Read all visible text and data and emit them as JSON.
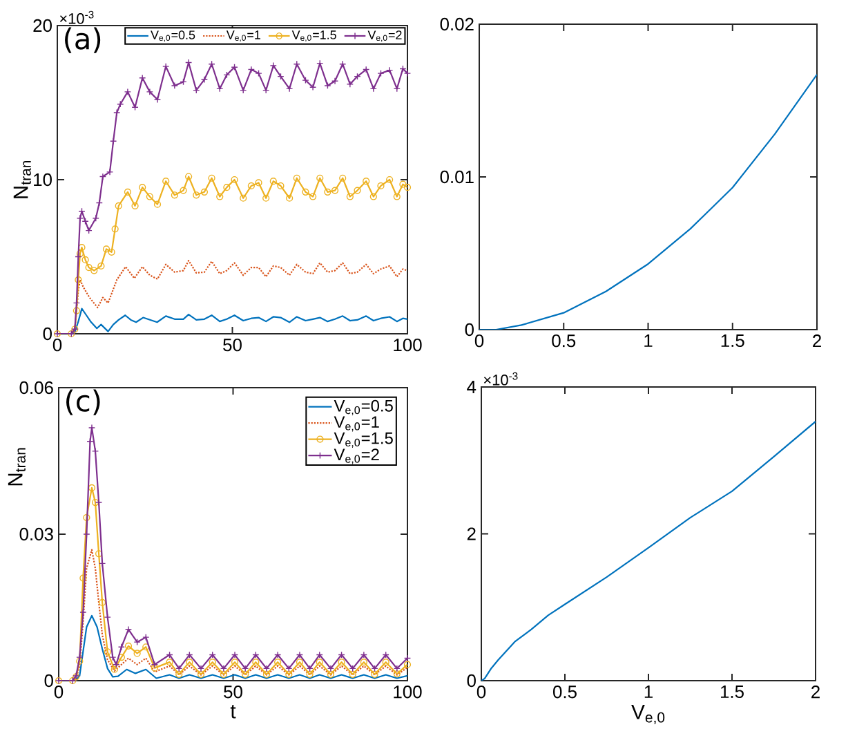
{
  "chart_data": [
    {
      "type": "line",
      "ylabel": "N$_{tran}$",
      "xlim": [
        0,
        100
      ],
      "ylim": [
        0,
        20
      ],
      "xticks": [
        0,
        50,
        100
      ],
      "yticks": [
        0,
        10,
        20
      ],
      "legend": "top",
      "annotations": [
        "(a)",
        "×10$^{-3}$"
      ],
      "series": [
        {
          "name": "V$_{e,0}$=0.5",
          "color": "#0072bd",
          "line_style": "solid",
          "x": [
            0,
            4,
            5,
            6,
            7,
            8,
            9.5,
            11.3,
            12.5,
            14.5,
            16,
            17.5,
            19.4,
            21,
            22.5,
            24.5,
            26.5,
            28.5,
            31,
            33.5,
            36,
            37.5,
            39.7,
            42,
            44.1,
            46.4,
            48.4,
            50.6,
            53.1,
            55.4,
            57.5,
            59.6,
            61.7,
            63.8,
            66.3,
            68.4,
            70.9,
            73,
            75,
            77.2,
            79.3,
            81.5,
            83.6,
            85.7,
            88.2,
            90.3,
            92.4,
            94.9,
            97,
            98.7,
            100
          ],
          "values": [
            0,
            0,
            0.1,
            0.8,
            1.63,
            1.3,
            0.8,
            0.35,
            0.6,
            0.15,
            0.6,
            0.9,
            1.2,
            0.9,
            0.75,
            1.05,
            0.9,
            0.75,
            1.15,
            0.95,
            0.95,
            1.25,
            0.9,
            0.95,
            1.2,
            0.8,
            0.95,
            1.2,
            0.85,
            1.0,
            1.05,
            0.8,
            1.1,
            1.05,
            0.75,
            1.1,
            0.85,
            0.95,
            1.05,
            0.8,
            0.95,
            1.15,
            0.85,
            0.9,
            1.15,
            0.85,
            1.0,
            1.1,
            0.8,
            1.0,
            0.95
          ]
        },
        {
          "name": "V$_{e,0}$=1",
          "color": "#d95319",
          "line_style": "dotted",
          "x": [
            0,
            4,
            5,
            5.5,
            6,
            6.5,
            7.5,
            9.2,
            11.5,
            13,
            14.5,
            17,
            19.5,
            22,
            24.3,
            26.4,
            28.6,
            31,
            33.5,
            36,
            37.5,
            39.7,
            42,
            44.1,
            46.4,
            48.4,
            50.6,
            53.1,
            55.4,
            57.5,
            59.6,
            61.7,
            63.8,
            66.3,
            68.4,
            70.9,
            73,
            75,
            77.2,
            79.3,
            81.5,
            83.6,
            85.7,
            88.2,
            90.3,
            92.4,
            94.9,
            97,
            98.7,
            100
          ],
          "values": [
            0,
            0,
            0.3,
            1.5,
            2.8,
            3.5,
            3.0,
            2.35,
            1.7,
            2.35,
            2.0,
            3.5,
            4.35,
            3.6,
            4.35,
            3.8,
            3.55,
            4.5,
            4.0,
            4.1,
            4.75,
            3.95,
            4.0,
            4.7,
            3.9,
            4.1,
            4.6,
            3.8,
            4.3,
            4.3,
            3.7,
            4.4,
            4.3,
            3.8,
            4.5,
            4.0,
            3.9,
            4.6,
            4.0,
            4.1,
            4.6,
            3.9,
            4.0,
            4.5,
            3.9,
            4.2,
            4.4,
            3.7,
            4.2,
            4.1
          ]
        },
        {
          "name": "V$_{e,0}$=1.5",
          "color": "#edb120",
          "line_style": "solid",
          "marker": "circle",
          "x": [
            0,
            4,
            5,
            5.5,
            6,
            6.5,
            7,
            8,
            9,
            10.5,
            12.5,
            14,
            15.5,
            16.5,
            17.5,
            20.1,
            22.2,
            24.3,
            26.4,
            28.6,
            31,
            33.5,
            36,
            37.5,
            39.7,
            42,
            44.1,
            46.4,
            48.4,
            50.6,
            53.1,
            55.4,
            57.5,
            59.6,
            61.7,
            63.8,
            66.3,
            68.4,
            70.9,
            73,
            75,
            77.2,
            79.3,
            81.5,
            83.6,
            85.7,
            88.2,
            90.3,
            92.4,
            94.9,
            97,
            98.7,
            100
          ],
          "values": [
            0,
            0,
            0.3,
            1.5,
            3.5,
            5.2,
            5.6,
            4.8,
            4.3,
            4.1,
            4.4,
            5.5,
            5.3,
            6.8,
            8.3,
            9.2,
            8.3,
            9.5,
            8.9,
            8.4,
            9.9,
            9.0,
            9.3,
            10.2,
            9.0,
            9.2,
            10.1,
            8.9,
            9.5,
            10.0,
            8.8,
            9.6,
            9.8,
            8.8,
            9.9,
            9.6,
            8.8,
            10.1,
            9.2,
            8.9,
            10.1,
            9.2,
            9.3,
            10.1,
            8.9,
            9.3,
            9.9,
            8.9,
            9.6,
            10.0,
            8.9,
            9.7,
            9.5
          ]
        },
        {
          "name": "V$_{e,0}$=2",
          "color": "#7e2f8e",
          "line_style": "solid",
          "marker": "cross",
          "x": [
            0,
            4,
            5,
            5.5,
            6,
            6.5,
            7,
            8,
            9,
            11,
            12,
            13,
            15,
            16,
            17,
            18,
            20.1,
            22.2,
            24.3,
            26.4,
            28.6,
            31,
            33.5,
            36,
            37.5,
            39.7,
            42,
            44.1,
            46.4,
            48.4,
            50.6,
            53.1,
            55.4,
            57.5,
            59.6,
            61.7,
            63.8,
            66.3,
            68.4,
            70.9,
            73,
            75,
            77.2,
            79.3,
            81.5,
            83.6,
            85.7,
            88.2,
            90.3,
            92.4,
            94.9,
            97,
            98.7,
            100
          ],
          "values": [
            0,
            0,
            0.3,
            2,
            5,
            7.5,
            7.95,
            7.3,
            6.7,
            7.5,
            8.5,
            10.2,
            10.5,
            12.5,
            14.35,
            14.9,
            15.7,
            14.7,
            16.6,
            15.7,
            15.2,
            17.35,
            16.1,
            16.35,
            17.6,
            15.8,
            16.5,
            17.5,
            15.9,
            16.8,
            17.3,
            15.8,
            17.15,
            16.9,
            15.8,
            17.4,
            16.7,
            15.9,
            17.5,
            16.45,
            16.0,
            17.55,
            16.1,
            16.4,
            17.5,
            16.2,
            16.7,
            17.15,
            15.9,
            16.9,
            17.1,
            15.9,
            17.2,
            16.9
          ]
        }
      ]
    },
    {
      "type": "line",
      "xlim": [
        0,
        2
      ],
      "ylim": [
        0,
        0.02
      ],
      "xticks": [
        0,
        0.5,
        1,
        1.5,
        2
      ],
      "yticks": [
        0,
        0.01,
        0.02
      ],
      "series": [
        {
          "color": "#0072bd",
          "line_style": "solid",
          "x": [
            0,
            0.1,
            0.25,
            0.5,
            0.75,
            1,
            1.25,
            1.5,
            1.75,
            2
          ],
          "values": [
            0,
            0,
            0.0003,
            0.0011,
            0.0025,
            0.0043,
            0.0066,
            0.0093,
            0.0128,
            0.0167
          ]
        }
      ]
    },
    {
      "type": "line",
      "xlabel": "t",
      "ylabel": "N$_{tran}$",
      "xlim": [
        0,
        100
      ],
      "ylim": [
        0,
        0.06
      ],
      "xticks": [
        0,
        50,
        100
      ],
      "yticks": [
        0,
        0.03,
        0.06
      ],
      "legend": "top right",
      "annotations": [
        "(c)"
      ],
      "series": [
        {
          "name": "V$_{e,0}$=0.5",
          "color": "#0072bd",
          "line_style": "solid",
          "x": [
            0,
            4,
            5,
            6,
            7,
            8,
            9.5,
            11,
            12.5,
            14,
            15.5,
            17,
            19.5,
            22,
            25,
            28,
            31.8,
            34.5,
            37.5,
            40.8,
            44.1,
            47.3,
            50.5,
            53.5,
            56.5,
            59.6,
            62.8,
            66,
            69.1,
            72,
            74.8,
            78,
            81.1,
            84.3,
            87.5,
            90.6,
            93.8,
            97,
            100
          ],
          "values": [
            0,
            0,
            0.0002,
            0.001,
            0.006,
            0.011,
            0.0133,
            0.011,
            0.0065,
            0.0025,
            0.0008,
            0.0009,
            0.0023,
            0.0015,
            0.0023,
            0.0005,
            0.0012,
            0.0005,
            0.0012,
            0.0005,
            0.0012,
            0.0005,
            0.0012,
            0.0005,
            0.0012,
            0.0005,
            0.0012,
            0.0005,
            0.0012,
            0.0005,
            0.0012,
            0.0005,
            0.0012,
            0.0005,
            0.0012,
            0.0005,
            0.0012,
            0.0005,
            0.001
          ]
        },
        {
          "name": "V$_{e,0}$=1",
          "color": "#d95319",
          "line_style": "dotted",
          "x": [
            0,
            4,
            5,
            6,
            7,
            8,
            9.5,
            10.5,
            11.5,
            12.5,
            14,
            16,
            18,
            20,
            22.5,
            25,
            27.5,
            31.8,
            34.5,
            37.5,
            40.8,
            44.1,
            47.3,
            50.5,
            53.5,
            56.5,
            59.6,
            62.8,
            66,
            69.1,
            72,
            74.8,
            78,
            81.1,
            84.3,
            87.5,
            90.6,
            93.8,
            97,
            100
          ],
          "values": [
            0,
            0,
            0.0005,
            0.003,
            0.012,
            0.023,
            0.0268,
            0.023,
            0.016,
            0.0094,
            0.0043,
            0.002,
            0.0033,
            0.0046,
            0.0033,
            0.0046,
            0.0018,
            0.003,
            0.0012,
            0.003,
            0.0012,
            0.003,
            0.0012,
            0.003,
            0.0012,
            0.003,
            0.0012,
            0.003,
            0.0012,
            0.003,
            0.0012,
            0.003,
            0.0012,
            0.003,
            0.0012,
            0.003,
            0.0012,
            0.003,
            0.0012,
            0.0027
          ]
        },
        {
          "name": "V$_{e,0}$=1.5",
          "color": "#edb120",
          "line_style": "solid",
          "marker": "circle",
          "x": [
            0,
            4,
            5,
            6,
            7,
            8,
            9.5,
            10.5,
            11.5,
            12.5,
            14,
            16,
            18,
            20,
            22.5,
            25,
            27.5,
            31.8,
            34.5,
            37.5,
            40.8,
            44.1,
            47.3,
            50.5,
            53.5,
            56.5,
            59.6,
            62.8,
            66,
            69.1,
            72,
            74.8,
            78,
            81.1,
            84.3,
            87.5,
            90.6,
            93.8,
            97,
            100
          ],
          "values": [
            0,
            0,
            0.0008,
            0.004,
            0.021,
            0.0334,
            0.0395,
            0.0365,
            0.026,
            0.016,
            0.0059,
            0.0023,
            0.0048,
            0.0071,
            0.0056,
            0.0069,
            0.0026,
            0.0038,
            0.0013,
            0.0038,
            0.0013,
            0.0038,
            0.0013,
            0.0038,
            0.0013,
            0.0038,
            0.0013,
            0.0038,
            0.0013,
            0.0038,
            0.0013,
            0.0038,
            0.0013,
            0.0038,
            0.0013,
            0.0038,
            0.0013,
            0.0038,
            0.0014,
            0.0033
          ]
        },
        {
          "name": "V$_{e,0}$=2",
          "color": "#7e2f8e",
          "line_style": "solid",
          "marker": "cross",
          "x": [
            0,
            4,
            5,
            6,
            7,
            8,
            9,
            9.5,
            10.5,
            11.5,
            12.5,
            14,
            15.5,
            16.5,
            18,
            20,
            22.5,
            25,
            27.5,
            31.8,
            34.5,
            37.5,
            40.8,
            44.1,
            47.3,
            50.5,
            53.5,
            56.5,
            59.6,
            62.8,
            66,
            69.1,
            72,
            74.8,
            78,
            81.1,
            84.3,
            87.5,
            90.6,
            93.8,
            97,
            100
          ],
          "values": [
            0,
            0,
            0.001,
            0.0048,
            0.014,
            0.03,
            0.049,
            0.0518,
            0.047,
            0.0365,
            0.024,
            0.013,
            0.0048,
            0.0033,
            0.0069,
            0.0105,
            0.0079,
            0.0089,
            0.0033,
            0.0053,
            0.0025,
            0.0053,
            0.0025,
            0.0053,
            0.0025,
            0.0053,
            0.0025,
            0.0053,
            0.0025,
            0.0053,
            0.0025,
            0.0053,
            0.0025,
            0.0053,
            0.0025,
            0.0053,
            0.0025,
            0.0053,
            0.0025,
            0.0053,
            0.0025,
            0.0046
          ]
        }
      ]
    },
    {
      "type": "line",
      "xlabel": "V$_{e,0}$",
      "xlim": [
        0,
        2
      ],
      "ylim": [
        0,
        4
      ],
      "xticks": [
        0,
        0.5,
        1,
        1.5,
        2
      ],
      "yticks": [
        0,
        2,
        4
      ],
      "annotations": [
        "×10$^{-3}$"
      ],
      "series": [
        {
          "color": "#0072bd",
          "line_style": "solid",
          "x": [
            0,
            0.02,
            0.06,
            0.1,
            0.2,
            0.3,
            0.4,
            0.5,
            0.75,
            1,
            1.25,
            1.5,
            1.75,
            2
          ],
          "values": [
            0,
            0.03,
            0.17,
            0.28,
            0.53,
            0.7,
            0.89,
            1.04,
            1.41,
            1.81,
            2.22,
            2.58,
            3.05,
            3.53
          ]
        }
      ]
    }
  ]
}
